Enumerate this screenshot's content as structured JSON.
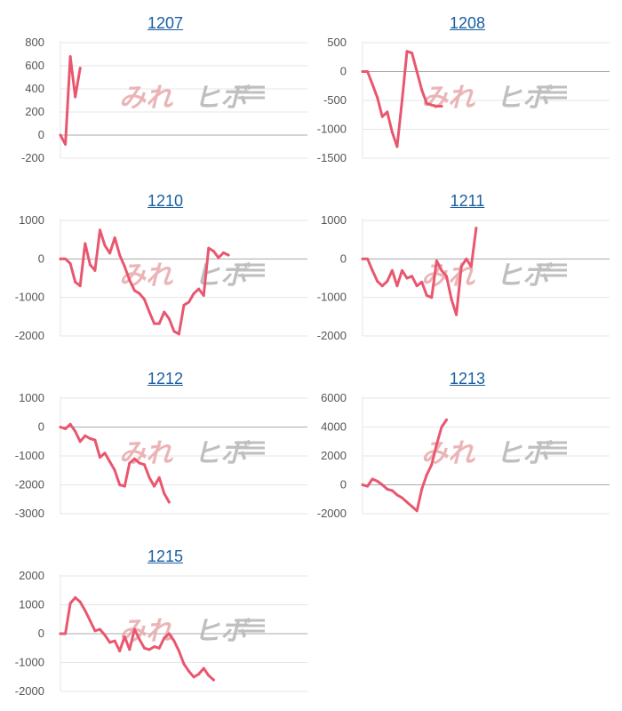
{
  "colors": {
    "line": "#e9576f",
    "grid": "#e6e6e6",
    "axis": "#aaaaaa",
    "title": "#1a5fa0",
    "watermark_left": "#e8a9ac",
    "watermark_right": "#b5b5b5"
  },
  "watermark": {
    "left": "みれ",
    "right": "ヒボ"
  },
  "chart_data": [
    {
      "type": "line",
      "title": "1207",
      "grid": true,
      "ylim": [
        -200,
        800
      ],
      "yticks": [
        -200,
        0,
        200,
        400,
        600,
        800
      ],
      "yticklabels": [
        "-200",
        "0",
        "200",
        "400",
        "600",
        "800"
      ],
      "x": [
        0,
        1,
        2,
        3,
        4
      ],
      "values": [
        0,
        -80,
        680,
        330,
        580
      ]
    },
    {
      "type": "line",
      "title": "1208",
      "grid": true,
      "ylim": [
        -1500,
        500
      ],
      "yticks": [
        -1500,
        -1000,
        -500,
        0,
        500
      ],
      "yticklabels": [
        "-1500",
        "-1000",
        "-500",
        "0",
        "500"
      ],
      "x": [
        0,
        1,
        2,
        3,
        4,
        5,
        6,
        7,
        8,
        9,
        10,
        11,
        12,
        13,
        14,
        15,
        16
      ],
      "values": [
        0,
        0,
        -220,
        -450,
        -780,
        -700,
        -1050,
        -1300,
        -500,
        350,
        320,
        0,
        -320,
        -550,
        -580,
        -600,
        -600
      ]
    },
    {
      "type": "line",
      "title": "1210",
      "grid": true,
      "ylim": [
        -2000,
        1000
      ],
      "yticks": [
        -2000,
        -1000,
        0,
        1000
      ],
      "yticklabels": [
        "-2000",
        "-1000",
        "0",
        "1000"
      ],
      "x": [
        0,
        1,
        2,
        3,
        4,
        5,
        6,
        7,
        8,
        9,
        10,
        11,
        12,
        13,
        14,
        15,
        16,
        17,
        18,
        19,
        20,
        21,
        22,
        23,
        24,
        25,
        26,
        27,
        28,
        29,
        30,
        31,
        32,
        33,
        34
      ],
      "values": [
        0,
        0,
        -120,
        -600,
        -700,
        400,
        -150,
        -300,
        750,
        350,
        150,
        550,
        100,
        -200,
        -550,
        -820,
        -900,
        -1050,
        -1380,
        -1680,
        -1680,
        -1380,
        -1550,
        -1880,
        -1950,
        -1200,
        -1120,
        -900,
        -780,
        -950,
        280,
        200,
        30,
        160,
        100
      ]
    },
    {
      "type": "line",
      "title": "1211",
      "grid": true,
      "ylim": [
        -2000,
        1000
      ],
      "yticks": [
        -2000,
        -1000,
        0,
        1000
      ],
      "yticklabels": [
        "-2000",
        "-1000",
        "0",
        "1000"
      ],
      "x": [
        0,
        1,
        2,
        3,
        4,
        5,
        6,
        7,
        8,
        9,
        10,
        11,
        12,
        13,
        14,
        15,
        16,
        17,
        18,
        19,
        20,
        21,
        22,
        23
      ],
      "values": [
        0,
        0,
        -300,
        -580,
        -700,
        -580,
        -300,
        -700,
        -300,
        -500,
        -450,
        -700,
        -600,
        -950,
        -1000,
        -50,
        -300,
        -450,
        -1050,
        -1450,
        -200,
        0,
        -200,
        800
      ]
    },
    {
      "type": "line",
      "title": "1212",
      "grid": true,
      "ylim": [
        -3000,
        1000
      ],
      "yticks": [
        -3000,
        -2000,
        -1000,
        0,
        1000
      ],
      "yticklabels": [
        "-3000",
        "-2000",
        "-1000",
        "0",
        "1000"
      ],
      "x": [
        0,
        1,
        2,
        3,
        4,
        5,
        6,
        7,
        8,
        9,
        10,
        11,
        12,
        13,
        14,
        15,
        16,
        17,
        18,
        19,
        20,
        21,
        22
      ],
      "values": [
        0,
        -60,
        100,
        -150,
        -500,
        -300,
        -400,
        -450,
        -1050,
        -900,
        -1200,
        -1500,
        -2000,
        -2050,
        -1250,
        -1100,
        -1250,
        -1300,
        -1750,
        -2050,
        -1750,
        -2300,
        -2600
      ]
    },
    {
      "type": "line",
      "title": "1213",
      "grid": true,
      "ylim": [
        -2000,
        6000
      ],
      "yticks": [
        -2000,
        0,
        2000,
        4000,
        6000
      ],
      "yticklabels": [
        "-2000",
        "0",
        "2000",
        "4000",
        "6000"
      ],
      "x": [
        0,
        1,
        2,
        3,
        4,
        5,
        6,
        7,
        8,
        9,
        10,
        11,
        12,
        13,
        14,
        15,
        16,
        17
      ],
      "values": [
        0,
        -100,
        400,
        250,
        0,
        -300,
        -400,
        -700,
        -900,
        -1200,
        -1500,
        -1800,
        -300,
        700,
        1400,
        2800,
        4000,
        4500
      ]
    },
    {
      "type": "line",
      "title": "1215",
      "grid": true,
      "ylim": [
        -2000,
        2000
      ],
      "yticks": [
        -2000,
        -1000,
        0,
        1000,
        2000
      ],
      "yticklabels": [
        "-2000",
        "-1000",
        "0",
        "1000",
        "2000"
      ],
      "x": [
        0,
        1,
        2,
        3,
        4,
        5,
        6,
        7,
        8,
        9,
        10,
        11,
        12,
        13,
        14,
        15,
        16,
        17,
        18,
        19,
        20,
        21,
        22,
        23,
        24,
        25,
        26,
        27,
        28,
        29,
        30,
        31
      ],
      "values": [
        0,
        0,
        1050,
        1250,
        1100,
        800,
        450,
        100,
        150,
        -50,
        -300,
        -250,
        -600,
        -100,
        -550,
        150,
        -200,
        -500,
        -550,
        -450,
        -500,
        -150,
        0,
        -250,
        -600,
        -1050,
        -1300,
        -1500,
        -1400,
        -1200,
        -1450,
        -1600
      ]
    }
  ]
}
